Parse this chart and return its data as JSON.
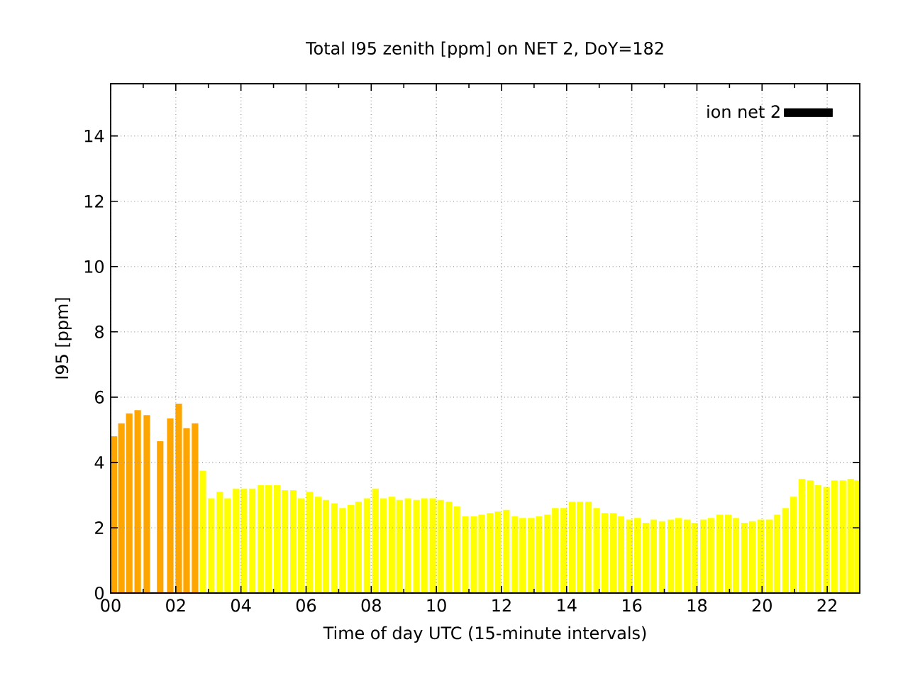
{
  "chart_data": {
    "type": "bar",
    "title": "Total I95 zenith [ppm] on NET 2, DoY=182",
    "xlabel": "Time of day UTC (15-minute intervals)",
    "ylabel": "I95 [ppm]",
    "x": [
      0.1,
      0.33,
      0.57,
      0.83,
      1.11,
      1.52,
      1.83,
      2.09,
      2.33,
      2.59,
      2.83,
      3.09,
      3.35,
      3.59,
      3.85,
      4.09,
      4.35,
      4.61,
      4.85,
      5.11,
      5.35,
      5.61,
      5.85,
      6.11,
      6.37,
      6.61,
      6.87,
      7.12,
      7.37,
      7.61,
      7.87,
      8.13,
      8.37,
      8.63,
      8.87,
      9.13,
      9.39,
      9.63,
      9.89,
      10.13,
      10.39,
      10.63,
      10.89,
      11.15,
      11.39,
      11.65,
      11.89,
      12.15,
      12.41,
      12.65,
      12.91,
      13.15,
      13.41,
      13.65,
      13.91,
      14.17,
      14.41,
      14.67,
      14.92,
      15.17,
      15.43,
      15.67,
      15.93,
      16.17,
      16.43,
      16.67,
      16.93,
      17.2,
      17.43,
      17.7,
      17.93,
      18.2,
      18.43,
      18.7,
      18.96,
      19.2,
      19.46,
      19.7,
      19.96,
      20.22,
      20.46,
      20.72,
      20.96,
      21.22,
      21.48,
      21.72,
      21.98,
      22.22,
      22.48,
      22.72,
      22.93
    ],
    "series": [
      {
        "name": "ion net 2",
        "color": "#000000",
        "values": [
          4.8,
          5.2,
          5.5,
          5.6,
          5.45,
          4.65,
          5.35,
          5.8,
          5.05,
          5.2,
          3.75,
          2.9,
          3.1,
          2.9,
          3.2,
          3.2,
          3.2,
          3.3,
          3.3,
          3.3,
          3.15,
          3.15,
          2.9,
          3.1,
          2.95,
          2.85,
          2.75,
          2.6,
          2.7,
          2.8,
          2.9,
          3.2,
          2.9,
          2.95,
          2.85,
          2.9,
          2.85,
          2.9,
          2.9,
          2.85,
          2.8,
          2.65,
          2.35,
          2.35,
          2.4,
          2.45,
          2.5,
          2.55,
          2.35,
          2.3,
          2.3,
          2.35,
          2.4,
          2.6,
          2.6,
          2.8,
          2.8,
          2.8,
          2.6,
          2.45,
          2.45,
          2.35,
          2.25,
          2.3,
          2.15,
          2.25,
          2.2,
          2.25,
          2.3,
          2.25,
          2.15,
          2.25,
          2.3,
          2.4,
          2.4,
          2.3,
          2.15,
          2.2,
          2.25,
          2.25,
          2.4,
          2.6,
          2.95,
          3.5,
          3.45,
          3.3,
          3.25,
          3.45,
          3.45,
          3.5,
          3.45
        ],
        "colors": [
          "#ffa500",
          "#ffa500",
          "#ffa500",
          "#ffa500",
          "#ffa500",
          "#ffa500",
          "#ffa500",
          "#ffa500",
          "#ffa500",
          "#ffa500",
          "#ffff00",
          "#ffff00",
          "#ffff00",
          "#ffff00",
          "#ffff00",
          "#ffff00",
          "#ffff00",
          "#ffff00",
          "#ffff00",
          "#ffff00",
          "#ffff00",
          "#ffff00",
          "#ffff00",
          "#ffff00",
          "#ffff00",
          "#ffff00",
          "#ffff00",
          "#ffff00",
          "#ffff00",
          "#ffff00",
          "#ffff00",
          "#ffff00",
          "#ffff00",
          "#ffff00",
          "#ffff00",
          "#ffff00",
          "#ffff00",
          "#ffff00",
          "#ffff00",
          "#ffff00",
          "#ffff00",
          "#ffff00",
          "#ffff00",
          "#ffff00",
          "#ffff00",
          "#ffff00",
          "#ffff00",
          "#ffff00",
          "#ffff00",
          "#ffff00",
          "#ffff00",
          "#ffff00",
          "#ffff00",
          "#ffff00",
          "#ffff00",
          "#ffff00",
          "#ffff00",
          "#ffff00",
          "#ffff00",
          "#ffff00",
          "#ffff00",
          "#ffff00",
          "#ffff00",
          "#ffff00",
          "#ffff00",
          "#ffff00",
          "#ffff00",
          "#ffff00",
          "#ffff00",
          "#ffff00",
          "#ffff00",
          "#ffff00",
          "#ffff00",
          "#ffff00",
          "#ffff00",
          "#ffff00",
          "#ffff00",
          "#ffff00",
          "#ffff00",
          "#ffff00",
          "#ffff00",
          "#ffff00",
          "#ffff00",
          "#ffff00",
          "#ffff00",
          "#ffff00",
          "#ffff00",
          "#ffff00",
          "#ffff00",
          "#ffff00",
          "#ffff00"
        ]
      }
    ],
    "xlim": [
      0,
      23
    ],
    "xticks": [
      {
        "value": 0,
        "label": "00"
      },
      {
        "value": 2,
        "label": "02"
      },
      {
        "value": 4,
        "label": "04"
      },
      {
        "value": 6,
        "label": "06"
      },
      {
        "value": 8,
        "label": "08"
      },
      {
        "value": 10,
        "label": "10"
      },
      {
        "value": 12,
        "label": "12"
      },
      {
        "value": 14,
        "label": "14"
      },
      {
        "value": 16,
        "label": "16"
      },
      {
        "value": 18,
        "label": "18"
      },
      {
        "value": 20,
        "label": "20"
      },
      {
        "value": 22,
        "label": "22"
      }
    ],
    "ylim": [
      0,
      15.6
    ],
    "yticks": [
      0,
      2,
      4,
      6,
      8,
      10,
      12,
      14
    ],
    "grid": true,
    "legend": "top right"
  }
}
